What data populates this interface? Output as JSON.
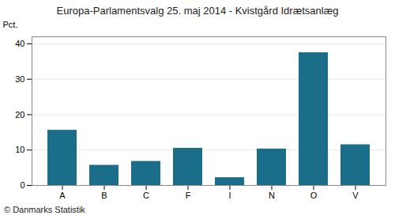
{
  "chart_data": {
    "type": "bar",
    "title": "Europa-Parlamentsvalg 25. maj 2014 - Kvistgård Idrætsanlæg",
    "categories": [
      "A",
      "B",
      "C",
      "F",
      "I",
      "N",
      "O",
      "V"
    ],
    "values": [
      15.6,
      5.7,
      6.8,
      10.5,
      2.2,
      10.3,
      37.5,
      11.5
    ],
    "color": "#1a6e8a",
    "ylabel": "Pct.",
    "ylim": [
      0,
      42
    ],
    "yticks": [
      0,
      10,
      20,
      30,
      40
    ],
    "grid": true,
    "footer": "© Danmarks Statistik"
  }
}
